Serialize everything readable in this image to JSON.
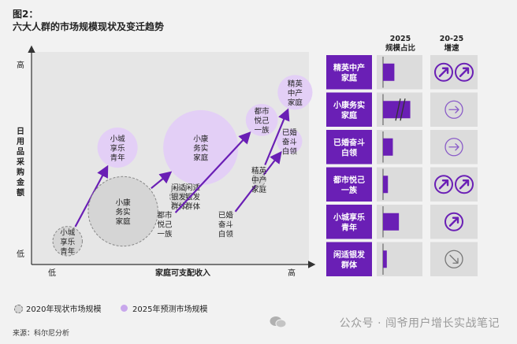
{
  "figure_label": "图2：",
  "title": "六大人群的市场规模现状及变迁趋势",
  "colors": {
    "purple": "#6a1fb5",
    "bubble_2025": "#e3cff6",
    "bubble_2020": "#d5d5d5",
    "grid_bg": "#e6e6e6",
    "table_bg": "#dcdcdc"
  },
  "chart_data": {
    "type": "scatter",
    "xlabel": "家庭可支配收入",
    "ylabel": "日用品采购金额",
    "x_ticks": {
      "low": "低",
      "high": "高"
    },
    "y_ticks": {
      "low": "低",
      "high": "高"
    },
    "segments": [
      {
        "id": "small_town_youth",
        "label": "小城享乐青年",
        "lines_2020": [
          "小城",
          "享乐",
          "青年"
        ],
        "lines_2025": [
          "小城",
          "享乐",
          "青年"
        ],
        "from": {
          "x": 1.3,
          "y": 1.1,
          "size": 2.2
        },
        "to": {
          "x": 3.1,
          "y": 5.5,
          "size": 3.0
        }
      },
      {
        "id": "xiaokang",
        "label": "小康务实家庭",
        "lines_2020": [
          "小康",
          "务实",
          "家庭"
        ],
        "lines_2025": [
          "小康",
          "务实",
          "家庭"
        ],
        "from": {
          "x": 3.3,
          "y": 2.5,
          "size": 5.2
        },
        "to": {
          "x": 6.1,
          "y": 5.5,
          "size": 5.6
        }
      },
      {
        "id": "silver",
        "label": "闲适银发群体",
        "lines_2020": [
          "闲适",
          "银发",
          "群体"
        ],
        "lines_2025": [
          "闲适",
          "银发",
          "群体"
        ],
        "from": {
          "x": 5.3,
          "y": 3.2,
          "size": 1.3
        },
        "to": {
          "x": 5.3,
          "y": 3.2,
          "size": 1.3
        },
        "label_2025_side": "right"
      },
      {
        "id": "urban_joy",
        "label": "都市悦己一族",
        "lines_2020": [
          "都市",
          "悦己",
          "一族"
        ],
        "lines_2025": [
          "都市",
          "悦己",
          "一族"
        ],
        "from": {
          "x": 4.8,
          "y": 1.9,
          "size": 0.0
        },
        "to": {
          "x": 8.3,
          "y": 6.8,
          "size": 2.4
        }
      },
      {
        "id": "married_worker",
        "label": "已婚奋斗白领",
        "lines_2020": [
          "已婚",
          "奋斗",
          "白领"
        ],
        "lines_2025": [
          "已婚",
          "奋斗",
          "白领"
        ],
        "from": {
          "x": 7.0,
          "y": 1.9,
          "size": 0.0
        },
        "to": {
          "x": 9.3,
          "y": 5.8,
          "size": 1.9
        }
      },
      {
        "id": "elite",
        "label": "精英中产家庭",
        "lines_2020": [
          "精英",
          "中产",
          "家庭"
        ],
        "lines_2025": [
          "精英",
          "中产",
          "家庭"
        ],
        "from": {
          "x": 8.2,
          "y": 4.0,
          "size": 1.0
        },
        "to": {
          "x": 9.5,
          "y": 8.1,
          "size": 2.6
        }
      }
    ],
    "xlim": [
      0,
      10
    ],
    "ylim": [
      0,
      10
    ],
    "size_note": "bubble size in relative market-size units"
  },
  "table": {
    "col_share": "2025\n规模占比",
    "col_growth": "20-25\n增速",
    "rows": [
      {
        "label_lines": [
          "精英中产",
          "家庭"
        ],
        "share": 0.3,
        "break": false,
        "growth": [
          "up-double",
          "up-double"
        ]
      },
      {
        "label_lines": [
          "小康务实",
          "家庭"
        ],
        "share": 0.72,
        "break": true,
        "growth": [
          "flat"
        ]
      },
      {
        "label_lines": [
          "已婚奋斗",
          "白领"
        ],
        "share": 0.26,
        "break": false,
        "growth": [
          "flat"
        ]
      },
      {
        "label_lines": [
          "都市悦己",
          "一族"
        ],
        "share": 0.13,
        "break": false,
        "growth": [
          "up-double",
          "up-double"
        ]
      },
      {
        "label_lines": [
          "小城享乐",
          "青年"
        ],
        "share": 0.42,
        "break": false,
        "growth": [
          "up-double"
        ]
      },
      {
        "label_lines": [
          "闲适银发",
          "群体"
        ],
        "share": 0.1,
        "break": false,
        "growth": [
          "down"
        ]
      }
    ]
  },
  "legend": {
    "item_2020": "2020年现状市场规模",
    "item_2025": "2025年预测市场规模"
  },
  "source": "来源：科尔尼分析",
  "watermark": "公众号 · 闯爷用户增长实战笔记"
}
